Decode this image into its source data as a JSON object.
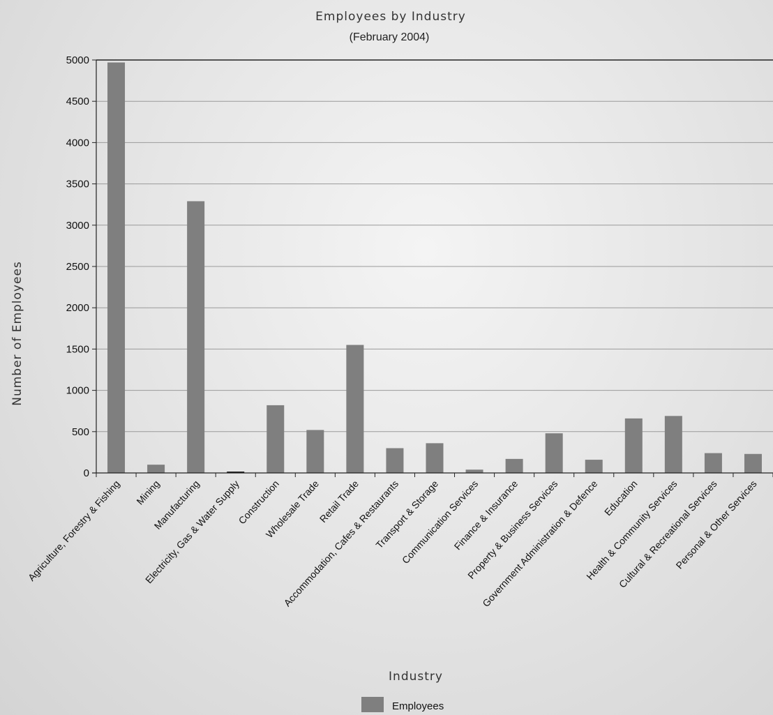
{
  "chart_data": {
    "type": "bar",
    "title": "Employees by Industry",
    "subtitle": "(February 2004)",
    "xlabel": "Industry",
    "ylabel": "Number of Employees",
    "ylim": [
      0,
      5000
    ],
    "yticks": [
      0,
      500,
      1000,
      1500,
      2000,
      2500,
      3000,
      3500,
      4000,
      4500,
      5000
    ],
    "grid": true,
    "legend_position": "bottom-center",
    "categories": [
      "Agriculture, Forestry & Fishing",
      "Mining",
      "Manufacturing",
      "Electricity, Gas & Water Supply",
      "Construction",
      "Wholesale Trade",
      "Retail Trade",
      "Accommodation, Cafes & Restaurants",
      "Transport & Storage",
      "Communication Services",
      "Finance & Insurance",
      "Property & Business Services",
      "Government Administration & Defence",
      "Education",
      "Health & Community Services",
      "Cultural & Recreational Services",
      "Personal & Other Services"
    ],
    "series": [
      {
        "name": "Employees",
        "color": "#7f7f7f",
        "values": [
          4970,
          100,
          3290,
          10,
          820,
          520,
          1550,
          300,
          360,
          40,
          170,
          480,
          160,
          660,
          690,
          240,
          230
        ]
      }
    ]
  }
}
